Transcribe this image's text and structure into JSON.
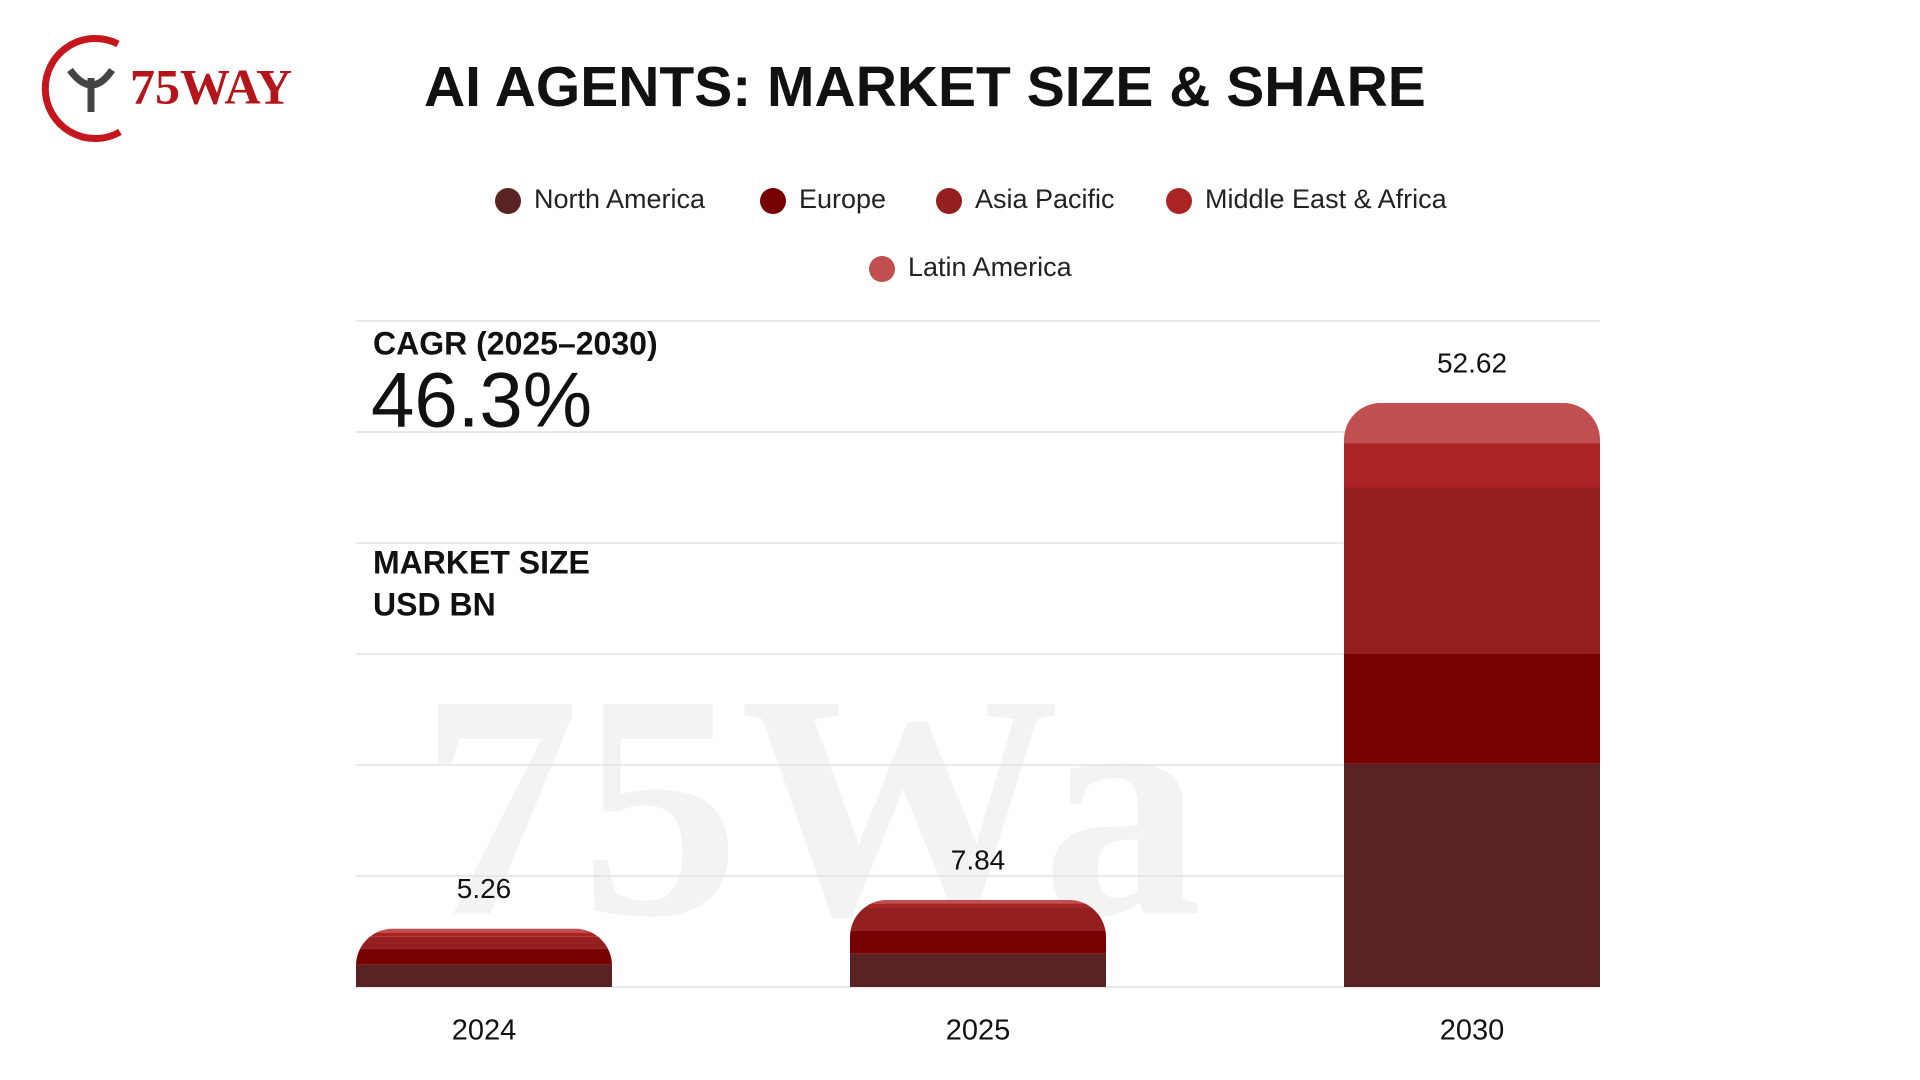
{
  "logo": "75WAY",
  "chart_data": {
    "type": "bar",
    "stacked": true,
    "title": "AI AGENTS: MARKET SIZE & SHARE",
    "watermark": "75Wa",
    "annotations": {
      "cagr_label": "CAGR (2025–2030)",
      "cagr_value": "46.3%",
      "unit_line1": "MARKET SIZE",
      "unit_line2": "USD BN"
    },
    "categories": [
      "2024",
      "2025",
      "2030"
    ],
    "totals": [
      5.26,
      7.84,
      52.62
    ],
    "series": [
      {
        "name": "North America",
        "color": "#5a2323",
        "values": [
          2.0,
          3.0,
          20.1
        ]
      },
      {
        "name": "Europe",
        "color": "#770000",
        "values": [
          1.43,
          2.1,
          9.9
        ]
      },
      {
        "name": "Asia Pacific",
        "color": "#931f1f",
        "values": [
          1.1,
          2.1,
          15.0
        ]
      },
      {
        "name": "Middle East & Africa",
        "color": "#ab2424",
        "values": [
          0.4,
          0.35,
          4.0
        ]
      },
      {
        "name": "Latin America",
        "color": "#c24f4f",
        "values": [
          0.33,
          0.29,
          3.62
        ]
      }
    ],
    "ylim": [
      0,
      60
    ],
    "yticks": [
      0,
      10,
      20,
      30,
      40,
      50,
      60
    ],
    "grid": true,
    "legend": "top"
  }
}
